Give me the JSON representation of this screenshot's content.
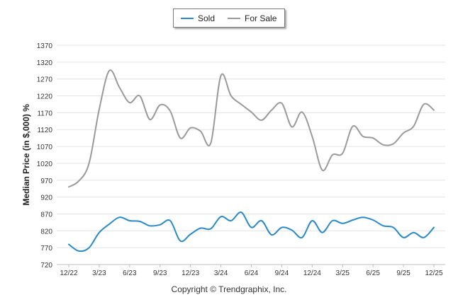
{
  "chart_data": {
    "type": "line",
    "ylabel": "Median Price (in $,000) %",
    "footer": "Copyright © Trendgraphix, Inc.",
    "ylim": [
      720,
      1370
    ],
    "yticks": [
      720,
      770,
      820,
      870,
      920,
      970,
      1020,
      1070,
      1120,
      1170,
      1220,
      1270,
      1320,
      1370
    ],
    "x_labels": [
      "12/22",
      "3/23",
      "6/23",
      "9/23",
      "12/23",
      "3/24",
      "6/24",
      "9/24",
      "12/24",
      "3/25",
      "6/25",
      "9/25",
      "12/25"
    ],
    "grid": "horizontal",
    "legend_position": "top-center",
    "x": [
      "12/22",
      "1/23",
      "2/23",
      "3/23",
      "4/23",
      "5/23",
      "6/23",
      "7/23",
      "8/23",
      "9/23",
      "10/23",
      "11/23",
      "12/23",
      "1/24",
      "2/24",
      "3/24",
      "4/24",
      "5/24",
      "6/24",
      "7/24",
      "8/24",
      "9/24",
      "10/24",
      "11/24",
      "12/24",
      "1/25",
      "2/25",
      "3/25",
      "4/25",
      "5/25",
      "6/25",
      "7/25",
      "8/25",
      "9/25",
      "10/25",
      "11/25",
      "12/25"
    ],
    "series": [
      {
        "name": "Sold",
        "color": "#2a8ac8",
        "values": [
          780,
          760,
          770,
          815,
          840,
          860,
          850,
          848,
          835,
          838,
          850,
          790,
          810,
          828,
          826,
          862,
          850,
          875,
          830,
          850,
          808,
          830,
          822,
          800,
          850,
          815,
          850,
          842,
          852,
          860,
          852,
          835,
          830,
          800,
          815,
          800,
          830
        ]
      },
      {
        "name": "For Sale",
        "color": "#9a9a9a",
        "values": [
          950,
          968,
          1020,
          1180,
          1295,
          1245,
          1200,
          1220,
          1150,
          1193,
          1175,
          1095,
          1125,
          1115,
          1080,
          1280,
          1220,
          1195,
          1172,
          1148,
          1178,
          1198,
          1128,
          1172,
          1100,
          1000,
          1045,
          1050,
          1130,
          1100,
          1095,
          1075,
          1078,
          1110,
          1130,
          1195,
          1178
        ]
      }
    ]
  }
}
